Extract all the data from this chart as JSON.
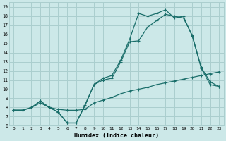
{
  "xlabel": "Humidex (Indice chaleur)",
  "bg_color": "#cce8e8",
  "grid_color": "#aacece",
  "line_color": "#1a6e6a",
  "xlim": [
    -0.5,
    23.5
  ],
  "ylim": [
    6,
    19.5
  ],
  "xticks": [
    0,
    1,
    2,
    3,
    4,
    5,
    6,
    7,
    8,
    9,
    10,
    11,
    12,
    13,
    14,
    15,
    16,
    17,
    18,
    19,
    20,
    21,
    22,
    23
  ],
  "yticks": [
    6,
    7,
    8,
    9,
    10,
    11,
    12,
    13,
    14,
    15,
    16,
    17,
    18,
    19
  ],
  "line1_x": [
    0,
    1,
    2,
    3,
    4,
    5,
    6,
    7,
    8,
    9,
    10,
    11,
    12,
    13,
    14,
    15,
    16,
    17,
    18,
    19,
    20,
    21,
    22,
    23
  ],
  "line1_y": [
    7.7,
    7.7,
    8.0,
    8.5,
    8.0,
    7.8,
    7.7,
    7.7,
    7.8,
    8.5,
    8.8,
    9.1,
    9.5,
    9.8,
    10.0,
    10.2,
    10.5,
    10.7,
    10.9,
    11.1,
    11.3,
    11.5,
    11.7,
    11.9
  ],
  "line2_x": [
    0,
    1,
    2,
    3,
    4,
    5,
    6,
    7,
    8,
    9,
    10,
    11,
    12,
    13,
    14,
    15,
    16,
    17,
    18,
    19,
    20,
    21,
    22,
    23
  ],
  "line2_y": [
    7.7,
    7.7,
    8.0,
    8.7,
    8.0,
    7.5,
    6.3,
    6.3,
    8.3,
    10.5,
    11.2,
    11.5,
    13.2,
    15.5,
    18.3,
    18.0,
    18.3,
    18.7,
    17.8,
    18.0,
    15.8,
    12.3,
    10.5,
    10.3
  ],
  "line3_x": [
    0,
    1,
    2,
    3,
    4,
    5,
    6,
    7,
    8,
    9,
    10,
    11,
    12,
    13,
    14,
    15,
    16,
    17,
    18,
    19,
    20,
    21,
    22,
    23
  ],
  "line3_y": [
    7.7,
    7.7,
    8.0,
    8.7,
    8.0,
    7.5,
    6.3,
    6.3,
    8.2,
    10.5,
    11.0,
    11.2,
    13.0,
    15.2,
    15.3,
    16.8,
    17.5,
    18.2,
    18.0,
    17.8,
    15.9,
    12.4,
    10.8,
    10.3
  ]
}
